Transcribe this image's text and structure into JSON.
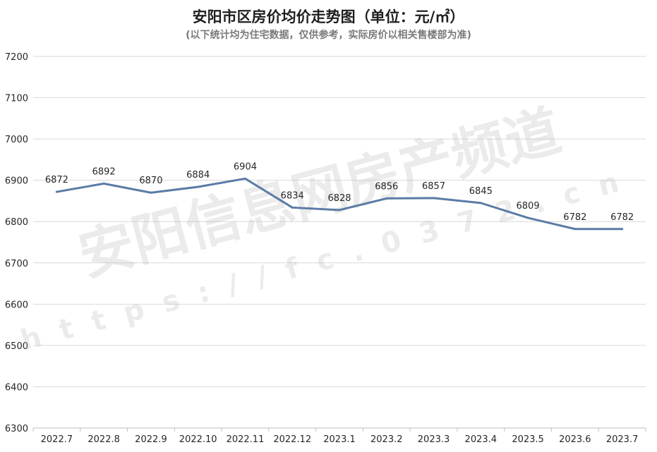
{
  "chart_data": {
    "type": "line",
    "title": "安阳市区房价均价走势图（单位：元/㎡）",
    "subtitle": "(以下统计均为住宅数据，仅供参考，实际房价以相关售楼部为准)",
    "categories": [
      "2022.7",
      "2022.8",
      "2022.9",
      "2022.10",
      "2022.11",
      "2022.12",
      "2023.1",
      "2023.2",
      "2023.3",
      "2023.4",
      "2023.5",
      "2023.6",
      "2023.7"
    ],
    "series": [
      {
        "values": [
          6872,
          6892,
          6870,
          6884,
          6904,
          6834,
          6828,
          6856,
          6857,
          6845,
          6809,
          6782,
          6782
        ]
      }
    ],
    "ylim": [
      6300,
      7200
    ],
    "yticks": [
      6300,
      6400,
      6500,
      6600,
      6700,
      6800,
      6900,
      7000,
      7100,
      7200
    ],
    "grid": true,
    "line_color": "#5b7ba6",
    "watermark": {
      "main": "安阳信息网房产频道",
      "url": "https://fc.0372.cn"
    }
  }
}
